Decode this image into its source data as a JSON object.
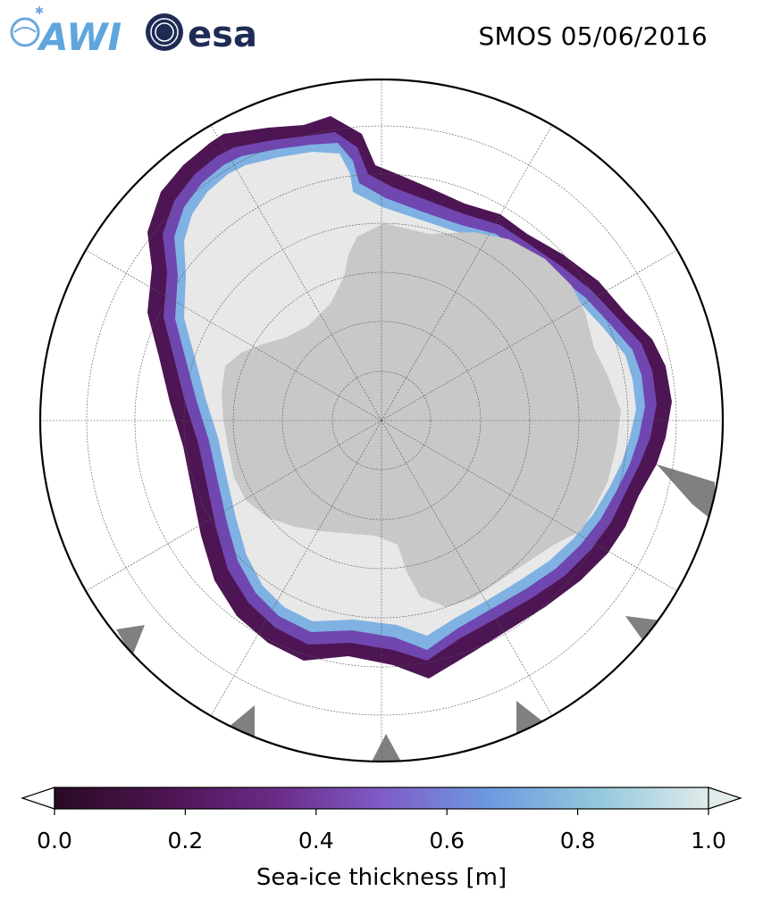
{
  "title": "SMOS 05/06/2016",
  "logos": {
    "left": "AWI",
    "right": "esa"
  },
  "colorbar": {
    "label": "Sea-ice thickness [m]",
    "ticks": [
      "0.0",
      "0.2",
      "0.4",
      "0.6",
      "0.8",
      "1.0"
    ],
    "min": 0.0,
    "max": 1.0,
    "extend": "both",
    "colors": [
      "#2a0a24",
      "#4b1450",
      "#6a2a86",
      "#7f5cc7",
      "#6d9be0",
      "#93c9dd",
      "#e1ebea"
    ]
  },
  "map": {
    "projection": "south-polar-stereographic",
    "land_color": "#c8c8c8",
    "missing_color": "#808080",
    "ice_color": "#e8e8e8",
    "graticule": true
  }
}
